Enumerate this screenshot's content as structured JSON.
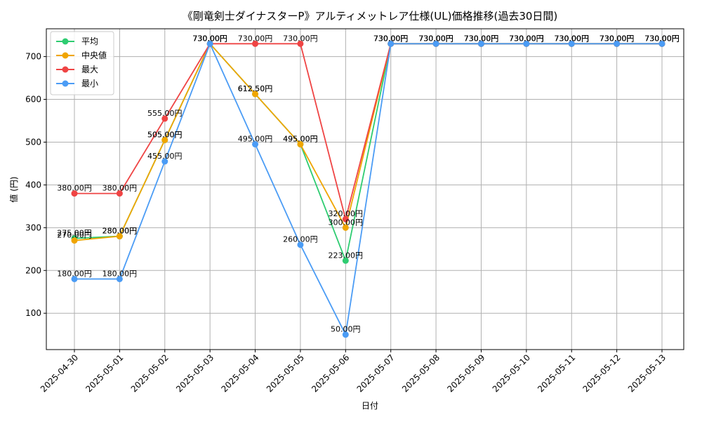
{
  "chart_data": {
    "type": "line",
    "title": "《剛竜剣士ダイナスターP》アルティメットレア仕様(UL)価格推移(過去30日間)",
    "xlabel": "日付",
    "ylabel": "値 (円)",
    "categories": [
      "2025-04-30",
      "2025-05-01",
      "2025-05-02",
      "2025-05-03",
      "2025-05-04",
      "2025-05-05",
      "2025-05-06",
      "2025-05-07",
      "2025-05-08",
      "2025-05-09",
      "2025-05-10",
      "2025-05-11",
      "2025-05-12",
      "2025-05-13"
    ],
    "ylim": [
      15,
      765
    ],
    "yticks": [
      100,
      200,
      300,
      400,
      500,
      600,
      700
    ],
    "grid": true,
    "legend_position": "top-left",
    "value_suffix": "円",
    "series": [
      {
        "name": "平均",
        "color": "#2ecc71",
        "values": [
          275,
          280,
          505,
          730,
          612.5,
          495,
          223,
          730,
          730,
          730,
          730,
          730,
          730,
          730
        ]
      },
      {
        "name": "中央値",
        "color": "#f0a500",
        "values": [
          270,
          280,
          505,
          730,
          612.5,
          495,
          300,
          730,
          730,
          730,
          730,
          730,
          730,
          730
        ]
      },
      {
        "name": "最大",
        "color": "#ef4444",
        "values": [
          380,
          380,
          555,
          730,
          730,
          730,
          320,
          730,
          730,
          730,
          730,
          730,
          730,
          730
        ]
      },
      {
        "name": "最小",
        "color": "#4b9cf5",
        "values": [
          180,
          180,
          455,
          730,
          495,
          260,
          50,
          730,
          730,
          730,
          730,
          730,
          730,
          730
        ]
      }
    ]
  }
}
